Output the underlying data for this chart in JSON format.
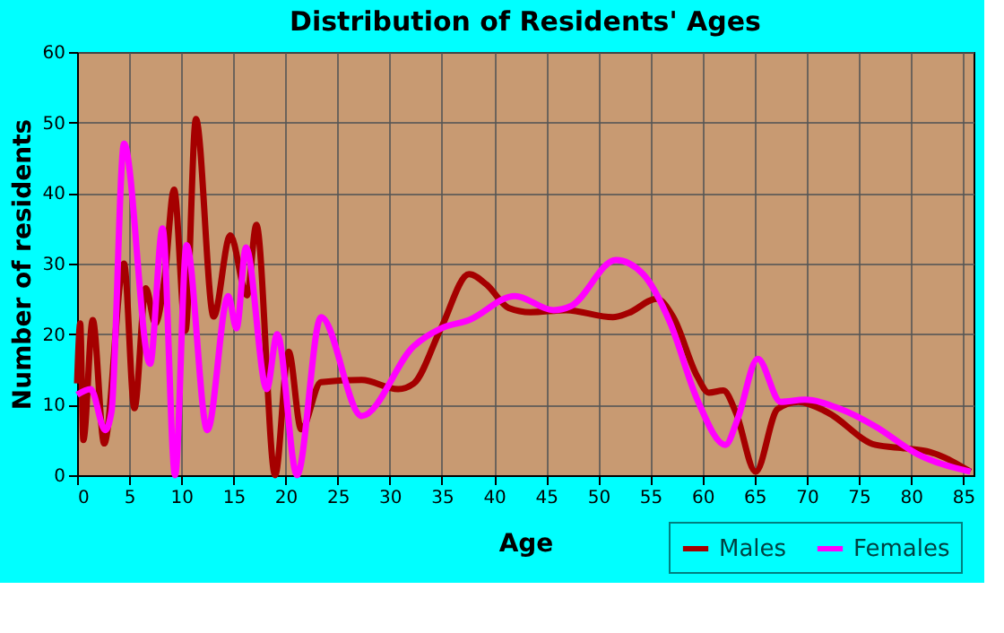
{
  "chart_data": {
    "type": "line",
    "title": "Distribution of Residents' Ages",
    "xlabel": "Age",
    "ylabel": "Number of residents",
    "xlim": [
      0,
      86
    ],
    "xticks": [
      0,
      5,
      10,
      15,
      20,
      25,
      30,
      35,
      40,
      45,
      50,
      55,
      60,
      65,
      70,
      75,
      80,
      85
    ],
    "ylim": [
      0,
      60
    ],
    "yticks": [
      0,
      10,
      20,
      30,
      40,
      50,
      60
    ],
    "grid": true,
    "legend": "bottom right",
    "marker": "none",
    "line_style": "solid",
    "series": [
      {
        "name": "Males",
        "color": "#a50000",
        "x": [
          0,
          0.3,
          0.6,
          1.5,
          2.6,
          4.5,
          5.5,
          6.6,
          7.5,
          8.4,
          9.3,
          10.4,
          11.4,
          13.1,
          14.7,
          16.3,
          17.2,
          19,
          20.3,
          21.5,
          23.4,
          27.3,
          30.8,
          32.3,
          34.9,
          37.6,
          39.3,
          41.4,
          43.5,
          46.9,
          51.4,
          52.9,
          55.6,
          57.2,
          59.5,
          60.6,
          62,
          63.2,
          65.1,
          67.2,
          69.2,
          72,
          76.6,
          79.5,
          81.8,
          85.7
        ],
        "values": [
          13,
          21.5,
          5,
          22,
          4.5,
          30,
          9.5,
          26.5,
          21.5,
          28,
          40.5,
          20.5,
          50.5,
          22.5,
          34,
          25.5,
          35.5,
          0,
          17.5,
          6.5,
          13.2,
          13.5,
          12.2,
          13,
          20.8,
          28.5,
          27,
          23.7,
          23.1,
          23.4,
          22.4,
          23,
          25,
          22.4,
          14,
          11.7,
          12,
          8.9,
          0.5,
          9.4,
          10.4,
          8.9,
          4.3,
          3.8,
          3.3,
          0.5
        ]
      },
      {
        "name": "Females",
        "color": "#ff00ff",
        "x": [
          0,
          1.3,
          2.7,
          3.3,
          4.5,
          7,
          8.2,
          9.4,
          10.5,
          12.5,
          14.5,
          15.3,
          16.2,
          18.2,
          19.2,
          21.1,
          23.4,
          27.3,
          32.3,
          34.9,
          37.6,
          42,
          45.7,
          47.4,
          51.7,
          54.3,
          56.9,
          59.5,
          62.2,
          63.4,
          65.3,
          67.5,
          69.8,
          73.2,
          76.6,
          80.6,
          85.7
        ],
        "values": [
          11.4,
          12.2,
          6.4,
          9,
          47,
          15.8,
          35,
          0,
          32.6,
          6.4,
          25.4,
          20.8,
          32.3,
          12.2,
          20,
          0,
          22.4,
          8.4,
          18.3,
          20.8,
          22,
          25.4,
          23.4,
          24,
          30.5,
          28.5,
          21.6,
          10.7,
          4.3,
          8.1,
          16.5,
          10.4,
          10.7,
          9.4,
          6.9,
          3,
          0.5
        ]
      }
    ]
  }
}
